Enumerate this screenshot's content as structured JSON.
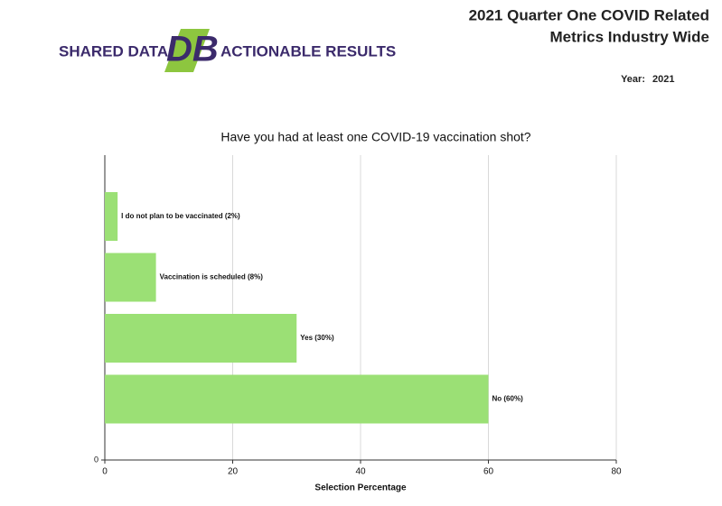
{
  "header": {
    "logo_left": "SHARED DATA",
    "logo_mark": "DB",
    "logo_right": "ACTIONABLE RESULTS",
    "title_lines": [
      "2021 Quarter One COVID Related",
      "Metrics Industry Wide"
    ],
    "year_label": "Year:",
    "year_value": "2021"
  },
  "chart_data": {
    "type": "hbar",
    "title": "Have you had at least one COVID-19 vaccination shot?",
    "categories": [
      null,
      null,
      null,
      null
    ],
    "values": [
      2,
      8,
      30,
      60
    ],
    "value_labels": [
      "I do not plan to be vaccinated (2%)",
      "Vaccination is scheduled (8%)",
      "Yes (30%)",
      "No (60%)"
    ],
    "color": "#9be075",
    "xlabel": "Selection Percentage",
    "xlim": [
      0,
      80
    ],
    "xticks": [
      0,
      20,
      40,
      60,
      80
    ],
    "category_axis_tick": 0,
    "grid": true
  }
}
